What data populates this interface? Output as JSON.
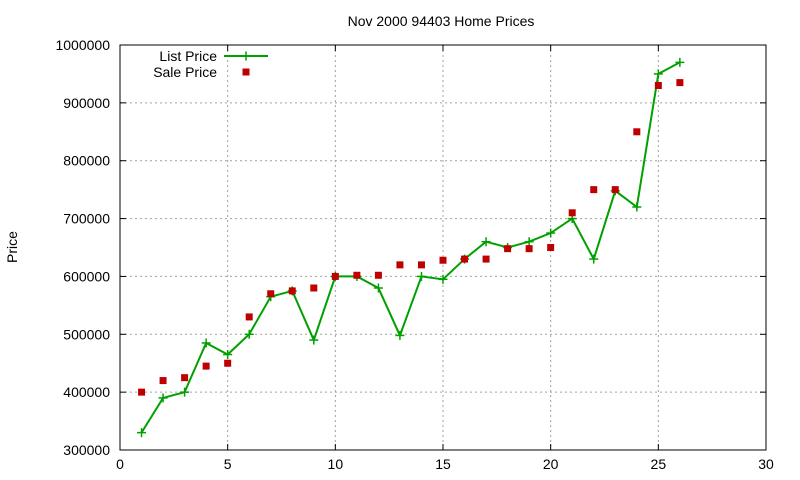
{
  "chart_data": {
    "type": "line",
    "title": "Nov 2000 94403 Home Prices",
    "xlabel": "",
    "ylabel": "Price",
    "xlim": [
      0,
      30
    ],
    "ylim": [
      300000,
      1000000
    ],
    "xticks": [
      0,
      5,
      10,
      15,
      20,
      25,
      30
    ],
    "yticks": [
      300000,
      400000,
      500000,
      600000,
      700000,
      800000,
      900000,
      1000000
    ],
    "xtick_labels": [
      "0",
      "5",
      "10",
      "15",
      "20",
      "25",
      "30"
    ],
    "ytick_labels": [
      "300000",
      "400000",
      "500000",
      "600000",
      "700000",
      "800000",
      "900000",
      "1000000"
    ],
    "grid": true,
    "legend_position": "top-left",
    "series": [
      {
        "name": "List Price",
        "style": "line-plus",
        "color": "#00a000",
        "x": [
          1,
          2,
          3,
          4,
          5,
          6,
          7,
          8,
          9,
          10,
          11,
          12,
          13,
          14,
          15,
          16,
          17,
          18,
          19,
          20,
          21,
          22,
          23,
          24,
          25,
          26
        ],
        "y": [
          330000,
          390000,
          400000,
          485000,
          465000,
          500000,
          565000,
          575000,
          490000,
          600000,
          600000,
          580000,
          498000,
          600000,
          595000,
          630000,
          660000,
          650000,
          660000,
          675000,
          700000,
          630000,
          748000,
          720000,
          950000,
          970000
        ]
      },
      {
        "name": "Sale Price",
        "style": "square-points",
        "color": "#c00000",
        "x": [
          1,
          2,
          3,
          4,
          5,
          6,
          7,
          8,
          9,
          10,
          11,
          12,
          13,
          14,
          15,
          16,
          17,
          18,
          19,
          20,
          21,
          22,
          23,
          24,
          25,
          26
        ],
        "y": [
          400000,
          420000,
          425000,
          445000,
          450000,
          530000,
          570000,
          575000,
          580000,
          600000,
          602000,
          602000,
          620000,
          620000,
          628000,
          630000,
          630000,
          648000,
          648000,
          650000,
          710000,
          750000,
          750000,
          850000,
          930000,
          935000
        ]
      }
    ]
  }
}
